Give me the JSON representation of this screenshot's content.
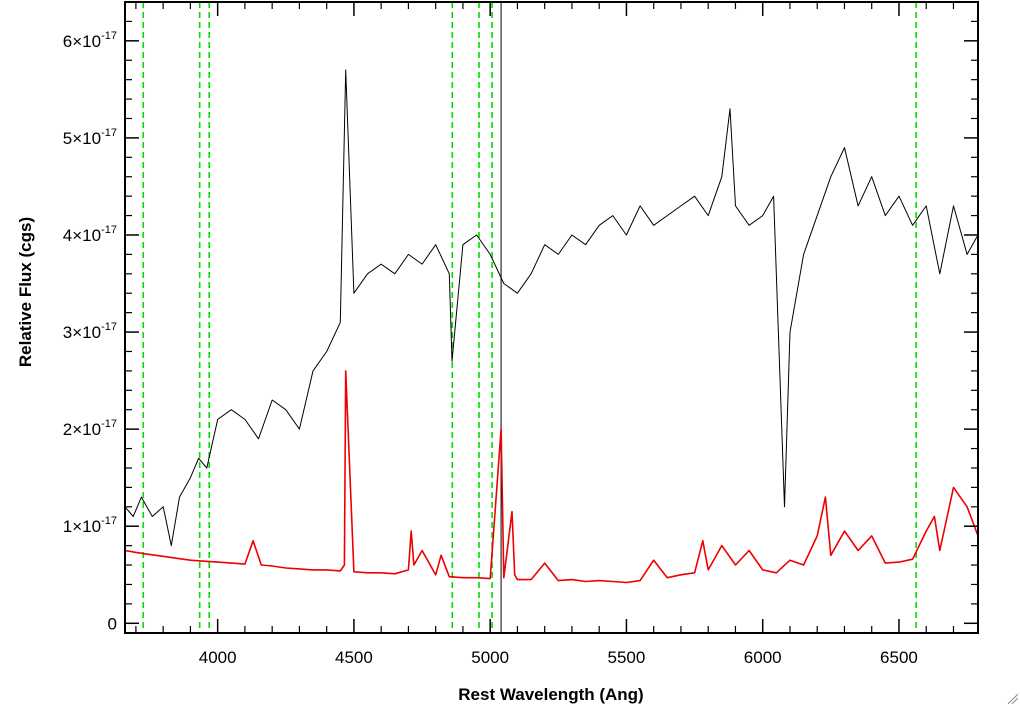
{
  "chart_data": {
    "type": "line",
    "title": "",
    "xlabel": "Rest Wavelength (Ang)",
    "ylabel": "Relative Flux (cgs)",
    "xlim": [
      3660,
      6790
    ],
    "ylim": [
      -1e-18,
      6.4e-17
    ],
    "x_ticks": [
      4000,
      4500,
      5000,
      5500,
      6000,
      6500
    ],
    "x_tick_labels": [
      "4000",
      "4500",
      "5000",
      "5500",
      "6000",
      "6500"
    ],
    "y_ticks": [
      0,
      1e-17,
      2e-17,
      3e-17,
      4e-17,
      5e-17,
      6e-17
    ],
    "y_tick_labels": [
      {
        "mantissa": "0",
        "exponent": ""
      },
      {
        "mantissa": "1×10",
        "exponent": "-17"
      },
      {
        "mantissa": "2×10",
        "exponent": "-17"
      },
      {
        "mantissa": "3×10",
        "exponent": "-17"
      },
      {
        "mantissa": "4×10",
        "exponent": "-17"
      },
      {
        "mantissa": "5×10",
        "exponent": "-17"
      },
      {
        "mantissa": "6×10",
        "exponent": "-17"
      }
    ],
    "grid": false,
    "legend": "none",
    "reference_lines": {
      "style": "dashed",
      "color": "#00dd00",
      "x": [
        3727,
        3934,
        3969,
        4861,
        4959,
        5007,
        6563
      ]
    },
    "solid_marker_x": 5040,
    "series": [
      {
        "color": "#000000",
        "x": [
          3660,
          3690,
          3720,
          3760,
          3800,
          3830,
          3860,
          3900,
          3930,
          3960,
          4000,
          4050,
          4100,
          4150,
          4200,
          4250,
          4300,
          4350,
          4400,
          4450,
          4470,
          4500,
          4550,
          4600,
          4650,
          4700,
          4750,
          4800,
          4850,
          4860,
          4900,
          4950,
          5000,
          5050,
          5100,
          5150,
          5200,
          5250,
          5300,
          5350,
          5400,
          5450,
          5500,
          5550,
          5600,
          5650,
          5700,
          5750,
          5800,
          5850,
          5880,
          5900,
          5950,
          6000,
          6040,
          6080,
          6100,
          6150,
          6200,
          6250,
          6300,
          6350,
          6400,
          6450,
          6500,
          6550,
          6600,
          6650,
          6700,
          6750,
          6790
        ],
        "y": [
          1.2e-17,
          1.1e-17,
          1.3e-17,
          1.1e-17,
          1.2e-17,
          8e-18,
          1.3e-17,
          1.5e-17,
          1.7e-17,
          1.6e-17,
          2.1e-17,
          2.2e-17,
          2.1e-17,
          1.9e-17,
          2.3e-17,
          2.2e-17,
          2e-17,
          2.6e-17,
          2.8e-17,
          3.1e-17,
          5.7e-17,
          3.4e-17,
          3.6e-17,
          3.7e-17,
          3.6e-17,
          3.8e-17,
          3.7e-17,
          3.9e-17,
          3.6e-17,
          2.7e-17,
          3.9e-17,
          4e-17,
          3.8e-17,
          3.5e-17,
          3.4e-17,
          3.6e-17,
          3.9e-17,
          3.8e-17,
          4e-17,
          3.9e-17,
          4.1e-17,
          4.2e-17,
          4e-17,
          4.3e-17,
          4.1e-17,
          4.2e-17,
          4.3e-17,
          4.4e-17,
          4.2e-17,
          4.6e-17,
          5.3e-17,
          4.3e-17,
          4.1e-17,
          4.2e-17,
          4.4e-17,
          1.2e-17,
          3e-17,
          3.8e-17,
          4.2e-17,
          4.6e-17,
          4.9e-17,
          4.3e-17,
          4.6e-17,
          4.2e-17,
          4.4e-17,
          4.1e-17,
          4.3e-17,
          3.6e-17,
          4.3e-17,
          3.8e-17,
          4e-17
        ]
      },
      {
        "color": "#ee0000",
        "x": [
          3660,
          3700,
          3750,
          3800,
          3850,
          3900,
          3950,
          4000,
          4050,
          4100,
          4130,
          4160,
          4200,
          4250,
          4300,
          4350,
          4400,
          4450,
          4465,
          4470,
          4500,
          4550,
          4600,
          4650,
          4700,
          4710,
          4720,
          4750,
          4800,
          4820,
          4850,
          4900,
          4950,
          5000,
          5040,
          5050,
          5080,
          5090,
          5100,
          5150,
          5200,
          5250,
          5300,
          5350,
          5400,
          5450,
          5500,
          5550,
          5600,
          5650,
          5700,
          5750,
          5780,
          5800,
          5850,
          5900,
          5950,
          6000,
          6050,
          6100,
          6150,
          6200,
          6230,
          6250,
          6300,
          6350,
          6400,
          6450,
          6500,
          6550,
          6600,
          6630,
          6650,
          6700,
          6750,
          6790
        ],
        "y": [
          7.5e-18,
          7.3e-18,
          7.1e-18,
          6.9e-18,
          6.7e-18,
          6.5e-18,
          6.4e-18,
          6.3e-18,
          6.2e-18,
          6.1e-18,
          8.5e-18,
          6e-18,
          5.9e-18,
          5.7e-18,
          5.6e-18,
          5.5e-18,
          5.5e-18,
          5.4e-18,
          6e-18,
          2.6e-17,
          5.3e-18,
          5.2e-18,
          5.2e-18,
          5.1e-18,
          5.5e-18,
          9.5e-18,
          6e-18,
          7.5e-18,
          5e-18,
          7e-18,
          4.8e-18,
          4.7e-18,
          4.7e-18,
          4.6e-18,
          2e-17,
          4.7e-18,
          1.15e-17,
          5e-18,
          4.5e-18,
          4.5e-18,
          6.2e-18,
          4.4e-18,
          4.5e-18,
          4.3e-18,
          4.4e-18,
          4.3e-18,
          4.2e-18,
          4.4e-18,
          6.5e-18,
          4.7e-18,
          5e-18,
          5.2e-18,
          8.5e-18,
          5.5e-18,
          8e-18,
          6e-18,
          7.5e-18,
          5.5e-18,
          5.2e-18,
          6.5e-18,
          6e-18,
          9e-18,
          1.3e-17,
          7e-18,
          9.5e-18,
          7.5e-18,
          9e-18,
          6.2e-18,
          6.3e-18,
          6.6e-18,
          9.5e-18,
          1.1e-17,
          7.5e-18,
          1.4e-17,
          1.2e-17,
          9e-18
        ]
      }
    ]
  }
}
